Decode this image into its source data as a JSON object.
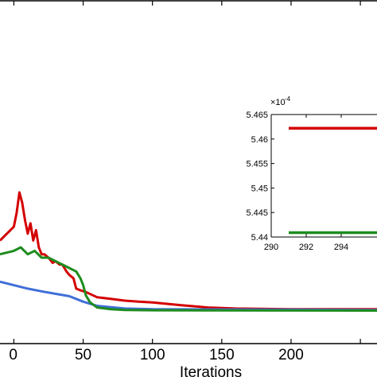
{
  "chart_data": [
    {
      "type": "line",
      "title": "",
      "xlabel": "Iterations",
      "ylabel": "",
      "xlim": [
        -10,
        262
      ],
      "ylim": [
        0,
        10
      ],
      "x_ticks": [
        50,
        100,
        150,
        200
      ],
      "x_tick_labels": [
        "50",
        "100",
        "150",
        "200"
      ],
      "partial_tick_label": "0",
      "grid": false,
      "legend": "none",
      "series": [
        {
          "color": "#d40000",
          "points": [
            [
              -10,
              3.0
            ],
            [
              0,
              3.4
            ],
            [
              2,
              3.8
            ],
            [
              4,
              4.4
            ],
            [
              6,
              4.1
            ],
            [
              8,
              3.6
            ],
            [
              10,
              3.2
            ],
            [
              12,
              3.5
            ],
            [
              14,
              3.0
            ],
            [
              16,
              3.3
            ],
            [
              18,
              2.8
            ],
            [
              20,
              2.6
            ],
            [
              22,
              2.6
            ],
            [
              25,
              2.5
            ],
            [
              28,
              2.35
            ],
            [
              30,
              2.4
            ],
            [
              33,
              2.3
            ],
            [
              35,
              2.3
            ],
            [
              38,
              2.1
            ],
            [
              40,
              2.0
            ],
            [
              43,
              1.9
            ],
            [
              45,
              1.6
            ],
            [
              48,
              1.55
            ],
            [
              52,
              1.5
            ],
            [
              60,
              1.35
            ],
            [
              70,
              1.3
            ],
            [
              80,
              1.25
            ],
            [
              90,
              1.22
            ],
            [
              100,
              1.2
            ],
            [
              120,
              1.12
            ],
            [
              140,
              1.05
            ],
            [
              160,
              1.02
            ],
            [
              200,
              1.0
            ],
            [
              262,
              1.0
            ]
          ]
        },
        {
          "color": "#3f6fd8",
          "points": [
            [
              -10,
              1.8
            ],
            [
              0,
              1.7
            ],
            [
              10,
              1.6
            ],
            [
              20,
              1.52
            ],
            [
              30,
              1.45
            ],
            [
              40,
              1.38
            ],
            [
              45,
              1.3
            ],
            [
              50,
              1.22
            ],
            [
              60,
              1.1
            ],
            [
              80,
              1.02
            ],
            [
              100,
              1.0
            ],
            [
              262,
              0.98
            ]
          ]
        },
        {
          "color": "#1e8c1e",
          "points": [
            [
              -10,
              2.6
            ],
            [
              0,
              2.7
            ],
            [
              5,
              2.8
            ],
            [
              10,
              2.6
            ],
            [
              15,
              2.7
            ],
            [
              20,
              2.5
            ],
            [
              25,
              2.5
            ],
            [
              30,
              2.4
            ],
            [
              35,
              2.3
            ],
            [
              40,
              2.2
            ],
            [
              45,
              2.1
            ],
            [
              48,
              1.9
            ],
            [
              50,
              1.7
            ],
            [
              52,
              1.4
            ],
            [
              55,
              1.2
            ],
            [
              60,
              1.05
            ],
            [
              70,
              1.0
            ],
            [
              80,
              0.98
            ],
            [
              100,
              0.97
            ],
            [
              262,
              0.96
            ]
          ]
        }
      ]
    },
    {
      "type": "line",
      "title": "",
      "xlabel": "",
      "ylabel": "",
      "y_exponent_label": "×10",
      "y_exponent_power": "-4",
      "xlim": [
        290,
        296.5
      ],
      "ylim": [
        5.44,
        5.465
      ],
      "x_ticks": [
        290,
        292,
        294
      ],
      "x_tick_labels": [
        "290",
        "292",
        "294"
      ],
      "y_ticks": [
        5.44,
        5.445,
        5.45,
        5.455,
        5.46,
        5.465
      ],
      "y_tick_labels": [
        "5.44",
        "5.445",
        "5.45",
        "5.455",
        "5.46",
        "5.465"
      ],
      "grid": false,
      "legend": "none",
      "series": [
        {
          "color": "#d40000",
          "points": [
            [
              291,
              5.4622
            ],
            [
              296.5,
              5.4622
            ]
          ]
        },
        {
          "color": "#1e8c1e",
          "points": [
            [
              291,
              5.4409
            ],
            [
              296.5,
              5.4409
            ]
          ]
        }
      ]
    }
  ]
}
